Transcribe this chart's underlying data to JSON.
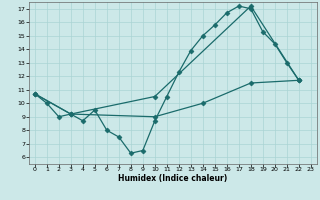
{
  "xlabel": "Humidex (Indice chaleur)",
  "bg_color": "#cce8e8",
  "grid_color": "#aad4d4",
  "line_color": "#1a6b6b",
  "marker": "D",
  "marker_size": 2.5,
  "line_width": 0.9,
  "xlim": [
    -0.5,
    23.5
  ],
  "ylim": [
    5.5,
    17.5
  ],
  "xticks": [
    0,
    1,
    2,
    3,
    4,
    5,
    6,
    7,
    8,
    9,
    10,
    11,
    12,
    13,
    14,
    15,
    16,
    17,
    18,
    19,
    20,
    21,
    22,
    23
  ],
  "yticks": [
    6,
    7,
    8,
    9,
    10,
    11,
    12,
    13,
    14,
    15,
    16,
    17
  ],
  "lines": [
    [
      [
        0,
        10.7
      ],
      [
        1,
        10.0
      ],
      [
        2,
        9.0
      ],
      [
        3,
        9.2
      ],
      [
        4,
        8.7
      ],
      [
        5,
        9.5
      ],
      [
        6,
        8.0
      ],
      [
        7,
        7.5
      ],
      [
        8,
        6.3
      ],
      [
        9,
        6.5
      ],
      [
        10,
        8.7
      ],
      [
        11,
        10.5
      ],
      [
        12,
        12.3
      ],
      [
        13,
        13.9
      ],
      [
        14,
        15.0
      ],
      [
        15,
        15.8
      ],
      [
        16,
        16.7
      ],
      [
        17,
        17.2
      ],
      [
        18,
        17.0
      ],
      [
        19,
        15.3
      ],
      [
        20,
        14.4
      ],
      [
        21,
        13.0
      ],
      [
        22,
        11.7
      ]
    ],
    [
      [
        0,
        10.7
      ],
      [
        3,
        9.2
      ],
      [
        10,
        10.5
      ],
      [
        18,
        17.2
      ],
      [
        22,
        11.7
      ]
    ],
    [
      [
        0,
        10.7
      ],
      [
        3,
        9.2
      ],
      [
        10,
        9.0
      ],
      [
        14,
        10.0
      ],
      [
        18,
        11.5
      ],
      [
        22,
        11.7
      ]
    ]
  ]
}
